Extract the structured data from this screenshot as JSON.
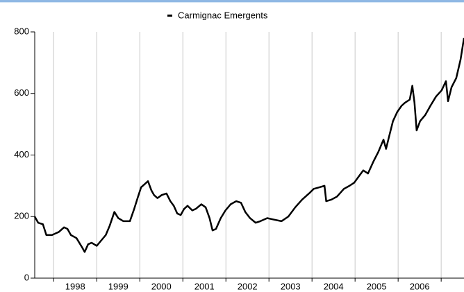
{
  "chart_data": {
    "type": "line",
    "series": [
      {
        "name": "Carmignac Emergents",
        "color": "#000000",
        "x": [
          1997.56,
          1997.64,
          1997.75,
          1997.83,
          1997.96,
          1998.04,
          1998.12,
          1998.24,
          1998.32,
          1998.4,
          1998.53,
          1998.66,
          1998.72,
          1998.8,
          1998.88,
          1999.0,
          1999.09,
          1999.21,
          1999.3,
          1999.41,
          1999.5,
          1999.62,
          1999.77,
          1999.87,
          1999.96,
          2000.03,
          2000.11,
          2000.19,
          2000.27,
          2000.33,
          2000.41,
          2000.51,
          2000.62,
          2000.71,
          2000.79,
          2000.87,
          2000.95,
          2001.03,
          2001.11,
          2001.22,
          2001.3,
          2001.43,
          2001.53,
          2001.62,
          2001.69,
          2001.77,
          2001.88,
          2001.99,
          2002.11,
          2002.24,
          2002.35,
          2002.45,
          2002.56,
          2002.69,
          2002.8,
          2002.96,
          2003.12,
          2003.29,
          2003.45,
          2003.61,
          2003.77,
          2003.93,
          2004.04,
          2004.17,
          2004.29,
          2004.33,
          2004.45,
          2004.58,
          2004.74,
          2004.87,
          2004.98,
          2005.11,
          2005.19,
          2005.3,
          2005.43,
          2005.54,
          2005.66,
          2005.72,
          2005.79,
          2005.88,
          2005.98,
          2006.08,
          2006.16,
          2006.27,
          2006.33,
          2006.38,
          2006.43,
          2006.51,
          2006.63,
          2006.75,
          2006.88,
          2007.01,
          2007.11,
          2007.16,
          2007.24,
          2007.35,
          2007.45,
          2007.53
        ],
        "values": [
          200,
          180,
          175,
          140,
          140,
          145,
          150,
          165,
          160,
          140,
          130,
          100,
          85,
          110,
          115,
          105,
          120,
          140,
          170,
          215,
          195,
          185,
          185,
          225,
          265,
          295,
          305,
          315,
          285,
          270,
          260,
          270,
          275,
          250,
          235,
          210,
          205,
          225,
          235,
          220,
          225,
          240,
          230,
          195,
          155,
          160,
          195,
          220,
          240,
          250,
          245,
          215,
          195,
          180,
          185,
          195,
          190,
          185,
          200,
          230,
          255,
          275,
          290,
          295,
          300,
          250,
          255,
          265,
          290,
          300,
          310,
          335,
          350,
          340,
          380,
          410,
          450,
          420,
          460,
          510,
          540,
          560,
          570,
          580,
          625,
          570,
          480,
          510,
          530,
          560,
          590,
          610,
          640,
          575,
          620,
          650,
          710,
          780
        ]
      }
    ],
    "xlim": [
      1997.56,
      2007.53
    ],
    "xticks": [
      1998,
      1999,
      2000,
      2001,
      2002,
      2003,
      2004,
      2005,
      2006,
      {
        "value": 2007,
        "label": null
      }
    ],
    "ylim": [
      0,
      800
    ],
    "yticks": [
      0,
      200,
      400,
      600,
      800
    ],
    "grid": true
  }
}
